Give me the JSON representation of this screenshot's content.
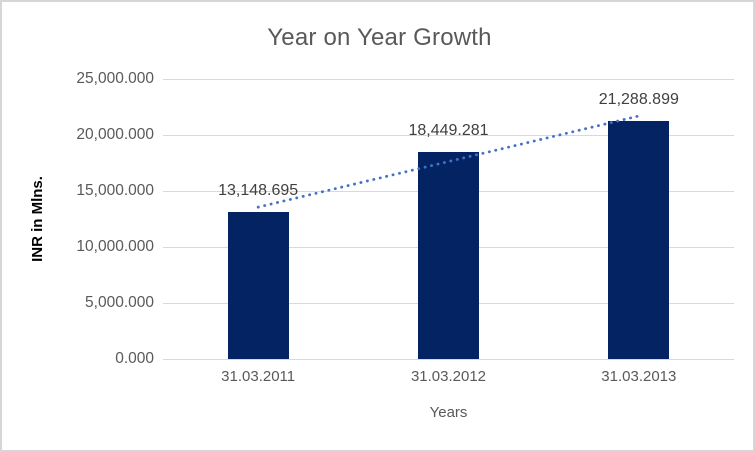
{
  "chart_data": {
    "type": "bar",
    "title": "Year on Year Growth",
    "xlabel": "Years",
    "ylabel": "INR in Mlns.",
    "categories": [
      "31.03.2011",
      "31.03.2012",
      "31.03.2013"
    ],
    "values": [
      13148.695,
      18449.281,
      21288.899
    ],
    "data_labels": [
      "13,148.695",
      "18,449.281",
      "21,288.899"
    ],
    "ylim": [
      0,
      25000
    ],
    "ytick_values": [
      0,
      5000,
      10000,
      15000,
      20000,
      25000
    ],
    "ytick_labels": [
      "0.000",
      "5,000.000",
      "10,000.000",
      "15,000.000",
      "20,000.000",
      "25,000.000"
    ],
    "grid": true,
    "legend": false,
    "trendline": {
      "type": "linear",
      "style": "dotted",
      "start_value": 13559,
      "end_value": 21699
    },
    "colors": {
      "bar": "#032363",
      "trendline": "#4472C4",
      "gridline": "#d9d9d9",
      "title": "#595959",
      "tick_label": "#595959",
      "data_label": "#404040",
      "axis_title_y": "#000000",
      "frame": "#d6d6d6"
    }
  }
}
